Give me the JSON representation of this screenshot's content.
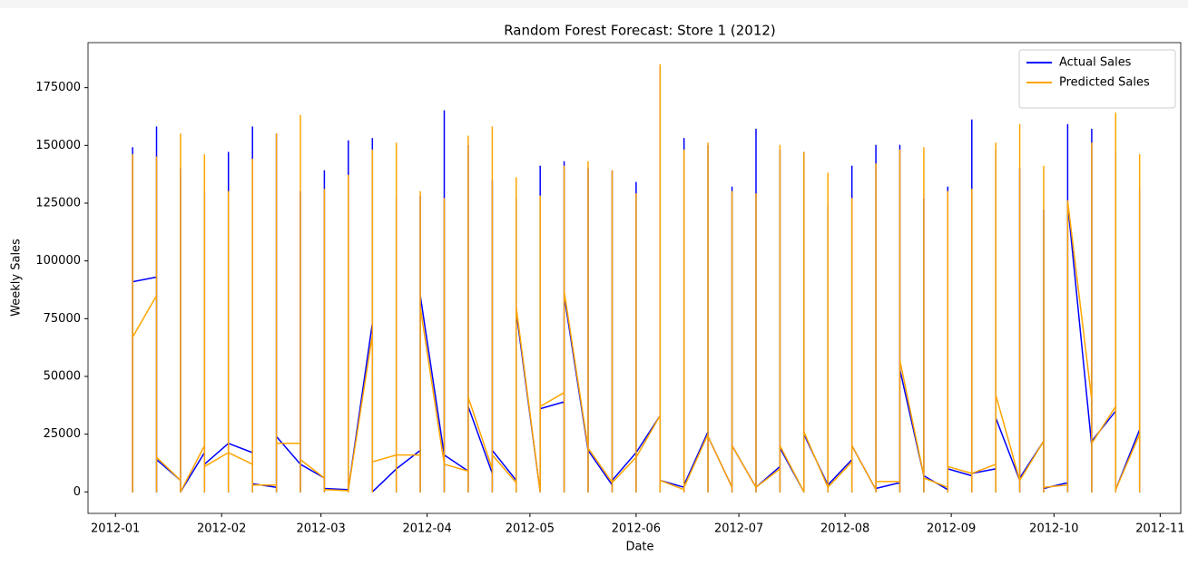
{
  "chart_data": {
    "type": "line",
    "title": "Random Forest Forecast: Store 1 (2012)",
    "x_label": "Date",
    "y_label": "Weekly Sales",
    "x": [
      "2012-01-06",
      "2012-01-06",
      "2012-01-06",
      "2012-01-06",
      "2012-01-13",
      "2012-01-13",
      "2012-01-13",
      "2012-01-13",
      "2012-01-20",
      "2012-01-20",
      "2012-01-20",
      "2012-01-20",
      "2012-01-27",
      "2012-01-27",
      "2012-01-27",
      "2012-01-27",
      "2012-02-03",
      "2012-02-03",
      "2012-02-03",
      "2012-02-03",
      "2012-02-10",
      "2012-02-10",
      "2012-02-10",
      "2012-02-10",
      "2012-02-17",
      "2012-02-17",
      "2012-02-17",
      "2012-02-17",
      "2012-02-24",
      "2012-02-24",
      "2012-02-24",
      "2012-02-24",
      "2012-03-02",
      "2012-03-02",
      "2012-03-02",
      "2012-03-02",
      "2012-03-09",
      "2012-03-09",
      "2012-03-09",
      "2012-03-09",
      "2012-03-16",
      "2012-03-16",
      "2012-03-16",
      "2012-03-16",
      "2012-03-23",
      "2012-03-23",
      "2012-03-23",
      "2012-03-23",
      "2012-03-30",
      "2012-03-30",
      "2012-03-30",
      "2012-03-30",
      "2012-04-06",
      "2012-04-06",
      "2012-04-06",
      "2012-04-06",
      "2012-04-13",
      "2012-04-13",
      "2012-04-13",
      "2012-04-13",
      "2012-04-20",
      "2012-04-20",
      "2012-04-20",
      "2012-04-20",
      "2012-04-27",
      "2012-04-27",
      "2012-04-27",
      "2012-04-27",
      "2012-05-04",
      "2012-05-04",
      "2012-05-04",
      "2012-05-04",
      "2012-05-11",
      "2012-05-11",
      "2012-05-11",
      "2012-05-11",
      "2012-05-18",
      "2012-05-18",
      "2012-05-18",
      "2012-05-18",
      "2012-05-25",
      "2012-05-25",
      "2012-05-25",
      "2012-05-25",
      "2012-06-01",
      "2012-06-01",
      "2012-06-01",
      "2012-06-01",
      "2012-06-08",
      "2012-06-08",
      "2012-06-08",
      "2012-06-08",
      "2012-06-15",
      "2012-06-15",
      "2012-06-15",
      "2012-06-15",
      "2012-06-22",
      "2012-06-22",
      "2012-06-22",
      "2012-06-22",
      "2012-06-29",
      "2012-06-29",
      "2012-06-29",
      "2012-06-29",
      "2012-07-06",
      "2012-07-06",
      "2012-07-06",
      "2012-07-06",
      "2012-07-13",
      "2012-07-13",
      "2012-07-13",
      "2012-07-13",
      "2012-07-20",
      "2012-07-20",
      "2012-07-20",
      "2012-07-20",
      "2012-07-27",
      "2012-07-27",
      "2012-07-27",
      "2012-07-27",
      "2012-08-03",
      "2012-08-03",
      "2012-08-03",
      "2012-08-03",
      "2012-08-10",
      "2012-08-10",
      "2012-08-10",
      "2012-08-10",
      "2012-08-17",
      "2012-08-17",
      "2012-08-17",
      "2012-08-17",
      "2012-08-24",
      "2012-08-24",
      "2012-08-24",
      "2012-08-24",
      "2012-08-31",
      "2012-08-31",
      "2012-08-31",
      "2012-08-31",
      "2012-09-07",
      "2012-09-07",
      "2012-09-07",
      "2012-09-07",
      "2012-09-14",
      "2012-09-14",
      "2012-09-14",
      "2012-09-14",
      "2012-09-21",
      "2012-09-21",
      "2012-09-21",
      "2012-09-21",
      "2012-09-28",
      "2012-09-28",
      "2012-09-28",
      "2012-09-28",
      "2012-10-05",
      "2012-10-05",
      "2012-10-05",
      "2012-10-05",
      "2012-10-12",
      "2012-10-12",
      "2012-10-12",
      "2012-10-12",
      "2012-10-19",
      "2012-10-19",
      "2012-10-19",
      "2012-10-19",
      "2012-10-26",
      "2012-10-26",
      "2012-10-26",
      "2012-10-26"
    ],
    "series": [
      {
        "name": "Actual Sales",
        "color": "#0000ff",
        "values": [
          0,
          149000,
          0,
          91000,
          93000,
          158000,
          0,
          14000,
          5000,
          140000,
          0,
          0,
          17000,
          130000,
          0,
          12000,
          21000,
          147000,
          0,
          21000,
          17000,
          158000,
          0,
          3500,
          2000,
          155000,
          0,
          24000,
          12000,
          130000,
          0,
          12000,
          6000,
          139000,
          0,
          1500,
          1000,
          152000,
          0,
          1000,
          73000,
          153000,
          0,
          0,
          10000,
          127000,
          0,
          10000,
          18000,
          128000,
          0,
          85000,
          16000,
          165000,
          0,
          16000,
          9000,
          150000,
          0,
          37000,
          8000,
          135000,
          0,
          18000,
          5000,
          127000,
          0,
          78000,
          0,
          141000,
          0,
          36000,
          39000,
          143000,
          0,
          85000,
          18000,
          140000,
          0,
          18000,
          3000,
          139000,
          0,
          5000,
          17000,
          134000,
          0,
          17000,
          33000,
          184000,
          0,
          5000,
          2000,
          153000,
          0,
          3000,
          26000,
          150000,
          0,
          24000,
          2000,
          132000,
          0,
          20000,
          2000,
          157000,
          0,
          2000,
          11000,
          148000,
          0,
          19000,
          0,
          147000,
          0,
          25000,
          3000,
          124000,
          0,
          3000,
          14000,
          141000,
          0,
          20000,
          1000,
          150000,
          0,
          1500,
          4000,
          150000,
          0,
          53000,
          7000,
          127000,
          0,
          7000,
          1000,
          132000,
          0,
          10000,
          7000,
          161000,
          0,
          8000,
          10000,
          148000,
          0,
          32000,
          5000,
          140000,
          0,
          6000,
          22000,
          122000,
          0,
          1500,
          4000,
          159000,
          0,
          125000,
          20000,
          157000,
          0,
          22000,
          35000,
          147000,
          0,
          1000,
          27000,
          132000,
          0,
          27000
        ]
      },
      {
        "name": "Predicted Sales",
        "color": "#ffa500",
        "values": [
          0,
          146000,
          0,
          67000,
          85000,
          145000,
          0,
          15000,
          5000,
          155000,
          0,
          0,
          20000,
          146000,
          0,
          11000,
          17000,
          130000,
          0,
          17000,
          12000,
          144000,
          0,
          3000,
          3000,
          155000,
          0,
          21000,
          21000,
          163000,
          0,
          14000,
          6000,
          131000,
          0,
          1000,
          500,
          137000,
          0,
          1000,
          68000,
          148000,
          0,
          13000,
          16000,
          151000,
          0,
          16000,
          16000,
          130000,
          0,
          80000,
          12000,
          127000,
          0,
          12000,
          9000,
          154000,
          0,
          41000,
          10000,
          158000,
          0,
          16000,
          4000,
          136000,
          0,
          80000,
          0,
          128000,
          0,
          37000,
          43000,
          141000,
          0,
          87000,
          19000,
          143000,
          0,
          19000,
          4000,
          139000,
          0,
          4000,
          15000,
          129000,
          0,
          15000,
          33000,
          185000,
          0,
          5000,
          1000,
          148000,
          0,
          2000,
          25000,
          151000,
          0,
          24000,
          2000,
          130000,
          0,
          20000,
          2000,
          129000,
          0,
          2000,
          10000,
          150000,
          0,
          20000,
          0,
          147000,
          0,
          26000,
          2000,
          138000,
          0,
          2000,
          13000,
          127000,
          0,
          20000,
          1000,
          142000,
          0,
          4500,
          4500,
          148000,
          0,
          57000,
          7000,
          149000,
          0,
          6000,
          2000,
          130000,
          0,
          11000,
          8000,
          131000,
          0,
          8000,
          12000,
          151000,
          0,
          42000,
          5000,
          159000,
          0,
          5000,
          22000,
          141000,
          0,
          2000,
          3000,
          126000,
          0,
          126000,
          40000,
          151000,
          0,
          21000,
          37000,
          164000,
          0,
          1000,
          25000,
          146000,
          0,
          25000
        ]
      }
    ],
    "xlim": [
      "2011-12-24",
      "2012-11-07"
    ],
    "xticks": [
      {
        "value": "2012-01-01",
        "label": "2012-01"
      },
      {
        "value": "2012-02-01",
        "label": "2012-02"
      },
      {
        "value": "2012-03-01",
        "label": "2012-03"
      },
      {
        "value": "2012-04-01",
        "label": "2012-04"
      },
      {
        "value": "2012-05-01",
        "label": "2012-05"
      },
      {
        "value": "2012-06-01",
        "label": "2012-06"
      },
      {
        "value": "2012-07-01",
        "label": "2012-07"
      },
      {
        "value": "2012-08-01",
        "label": "2012-08"
      },
      {
        "value": "2012-09-01",
        "label": "2012-09"
      },
      {
        "value": "2012-10-01",
        "label": "2012-10"
      },
      {
        "value": "2012-11-01",
        "label": "2012-11"
      }
    ],
    "ylim": [
      -9300,
      194500
    ],
    "yticks": [
      0,
      25000,
      50000,
      75000,
      100000,
      125000,
      150000,
      175000
    ],
    "legend": "upper right",
    "grid": false
  }
}
